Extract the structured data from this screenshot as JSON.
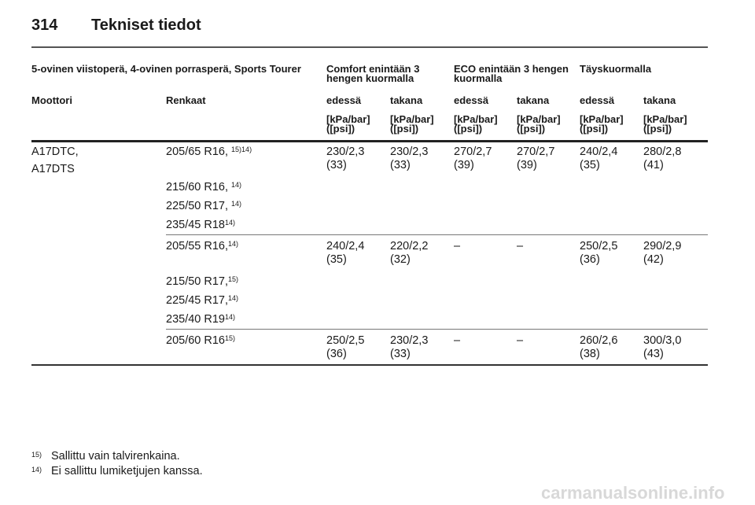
{
  "page": {
    "number": "314",
    "title": "Tekniset tiedot"
  },
  "table": {
    "group_header": "5-ovinen viistoperä, 4-ovinen porrasperä, Sports Tourer",
    "load_headers": [
      "Comfort enintään 3 hengen kuormalla",
      "ECO enintään 3 hengen kuormalla",
      "Täyskuormalla"
    ],
    "col_engine": "Moottori",
    "col_tyres": "Renkaat",
    "axle_headers": [
      "edessä",
      "takana",
      "edessä",
      "takana",
      "edessä",
      "takana"
    ],
    "unit_line1": "[kPa/bar]",
    "unit_line2": "([psi])",
    "engine_lines": [
      "A17DTC,",
      "A17DTS"
    ],
    "rows": [
      {
        "tyres": [
          {
            "t": "205/65 R16, ",
            "n": "15)14)"
          },
          {
            "t": "215/60 R16, ",
            "n": "14)"
          },
          {
            "t": "225/50 R17, ",
            "n": "14)"
          },
          {
            "t": "235/45 R18",
            "n": "14)"
          }
        ],
        "values": [
          [
            "230/2,3",
            "(33)"
          ],
          [
            "230/2,3",
            "(33)"
          ],
          [
            "270/2,7",
            "(39)"
          ],
          [
            "270/2,7",
            "(39)"
          ],
          [
            "240/2,4",
            "(35)"
          ],
          [
            "280/2,8",
            "(41)"
          ]
        ]
      },
      {
        "tyres": [
          {
            "t": "205/55 R16,",
            "n": "14)"
          },
          {
            "t": "215/50 R17,",
            "n": "15)"
          },
          {
            "t": "225/45 R17,",
            "n": "14)"
          },
          {
            "t": "235/40 R19",
            "n": "14)"
          }
        ],
        "values": [
          [
            "240/2,4",
            "(35)"
          ],
          [
            "220/2,2",
            "(32)"
          ],
          [
            "–",
            ""
          ],
          [
            "–",
            ""
          ],
          [
            "250/2,5",
            "(36)"
          ],
          [
            "290/2,9",
            "(42)"
          ]
        ]
      },
      {
        "tyres": [
          {
            "t": "205/60 R16",
            "n": "15)"
          }
        ],
        "values": [
          [
            "250/2,5",
            "(36)"
          ],
          [
            "230/2,3",
            "(33)"
          ],
          [
            "–",
            ""
          ],
          [
            "–",
            ""
          ],
          [
            "260/2,6",
            "(38)"
          ],
          [
            "300/3,0",
            "(43)"
          ]
        ]
      }
    ]
  },
  "footnotes": [
    {
      "n": "15)",
      "text": "Sallittu vain talvirenkaina."
    },
    {
      "n": "14)",
      "text": "Ei sallittu lumiketjujen kanssa."
    }
  ],
  "watermark": "carmanualsonline.info"
}
